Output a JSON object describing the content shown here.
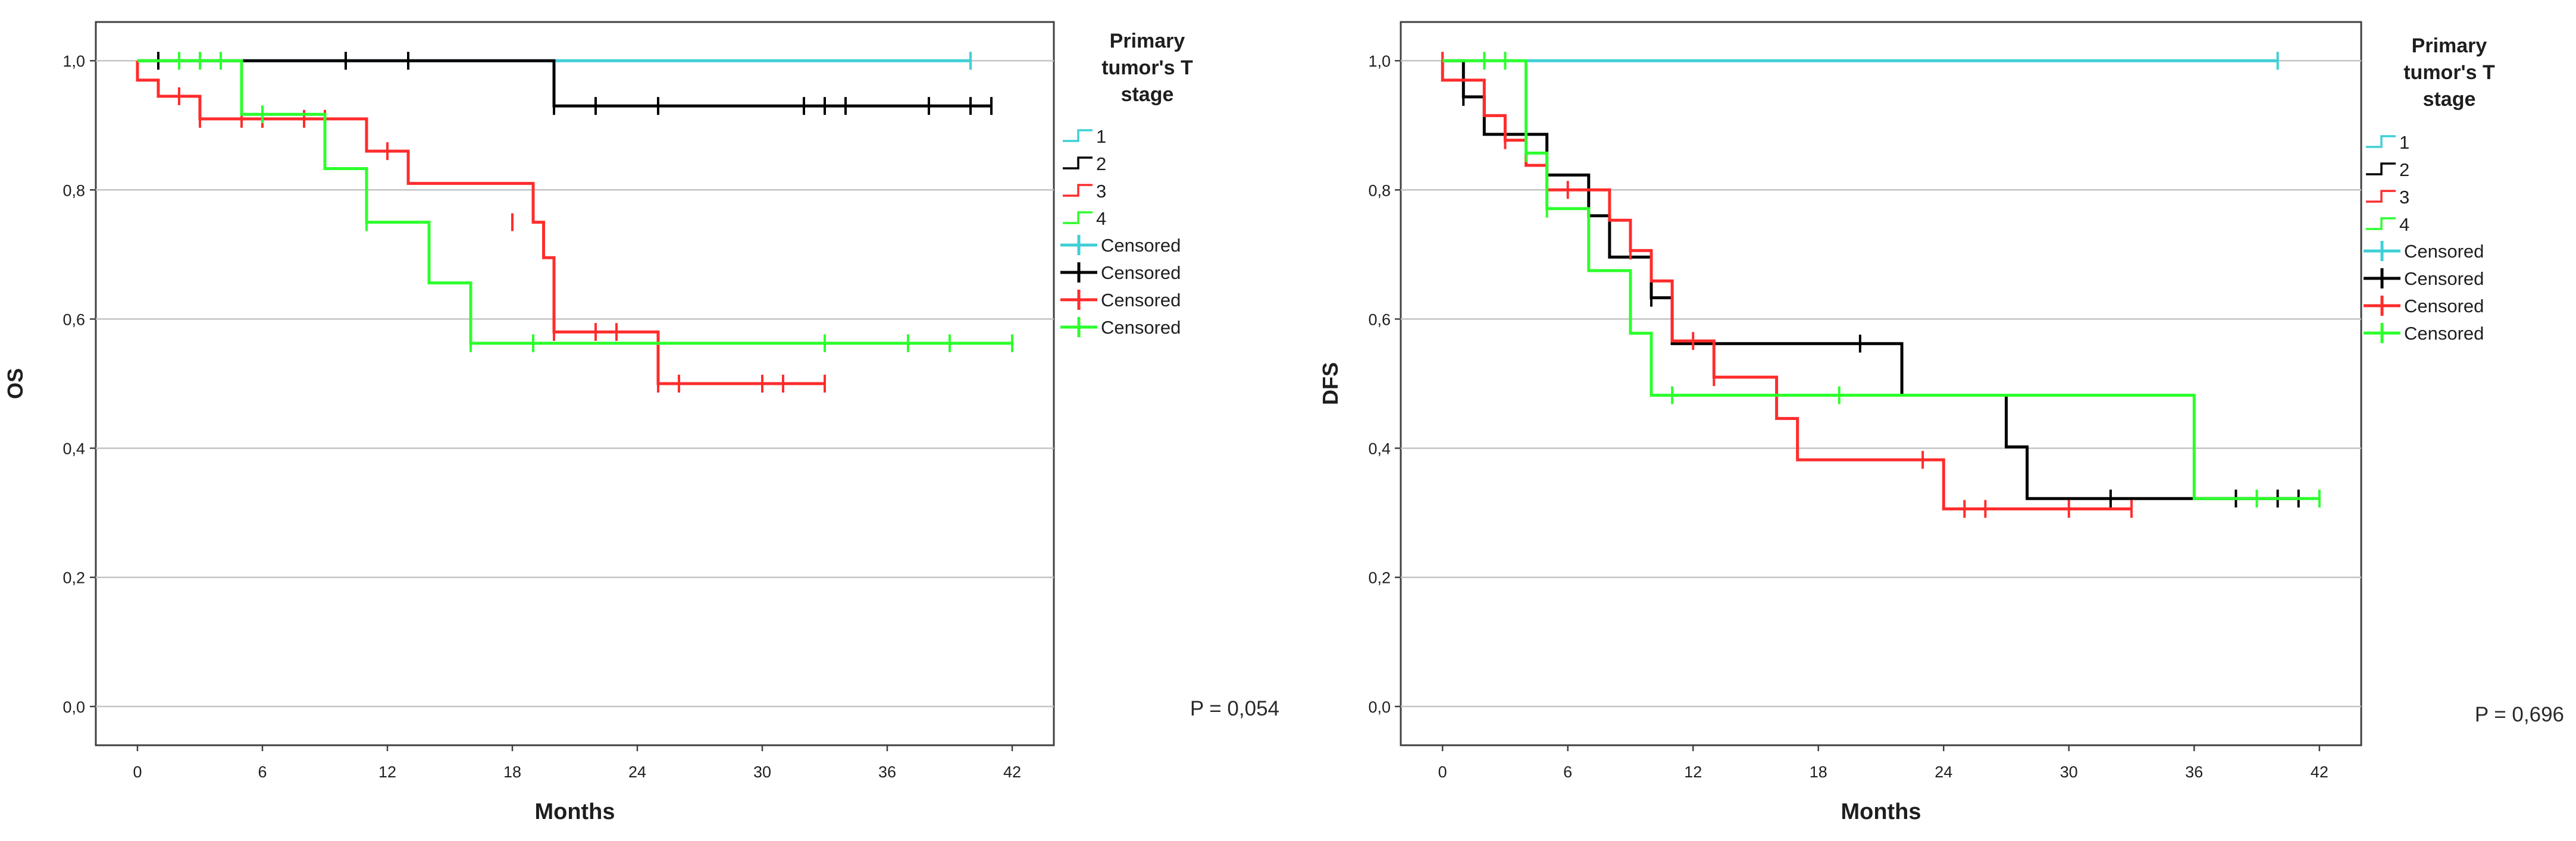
{
  "figure": {
    "legend_title": [
      "Primary",
      "tumor's T",
      "stage"
    ],
    "groups": [
      "1",
      "2",
      "3",
      "4"
    ],
    "censored_label": "Censored",
    "colors": {
      "1": "#3fcfd6",
      "2": "#000000",
      "3": "#ff2c2c",
      "4": "#2cff2c",
      "grid": "#c4c4c4",
      "axis": "#404040",
      "text": "#1e1e1e"
    }
  },
  "chart_data": [
    {
      "type": "line",
      "chart_kind": "kaplan-meier",
      "title": "",
      "xlabel": "Months",
      "ylabel": "OS",
      "xlim": [
        -2,
        44
      ],
      "ylim": [
        -0.06,
        1.06
      ],
      "xticks": [
        0,
        6,
        12,
        18,
        24,
        30,
        36,
        42
      ],
      "yticks": [
        0.0,
        0.2,
        0.4,
        0.6,
        0.8,
        1.0
      ],
      "ytick_labels": [
        "0,0",
        "0,2",
        "0,4",
        "0,6",
        "0,8",
        "1,0"
      ],
      "grid": "horizontal",
      "p_value_label": "P = 0,054",
      "series": [
        {
          "name": "1",
          "color_key": "1",
          "steps": [
            [
              0,
              1.0
            ],
            [
              40,
              1.0
            ]
          ],
          "censored": [
            [
              40,
              1.0
            ]
          ]
        },
        {
          "name": "2",
          "color_key": "2",
          "steps": [
            [
              0,
              1.0
            ],
            [
              20,
              0.93
            ],
            [
              41,
              0.93
            ]
          ],
          "censored": [
            [
              1,
              1.0
            ],
            [
              10,
              1.0
            ],
            [
              13,
              1.0
            ],
            [
              20,
              0.93
            ],
            [
              22,
              0.93
            ],
            [
              25,
              0.93
            ],
            [
              32,
              0.93
            ],
            [
              33,
              0.93
            ],
            [
              34,
              0.93
            ],
            [
              38,
              0.93
            ],
            [
              40,
              0.93
            ],
            [
              41,
              0.93
            ]
          ]
        },
        {
          "name": "3",
          "color_key": "3",
          "steps": [
            [
              0,
              1.0
            ],
            [
              0,
              0.97
            ],
            [
              1,
              0.945
            ],
            [
              3,
              0.91
            ],
            [
              11,
              0.86
            ],
            [
              13,
              0.81
            ],
            [
              19,
              0.75
            ],
            [
              19.5,
              0.695
            ],
            [
              20,
              0.58
            ],
            [
              25,
              0.5
            ],
            [
              33,
              0.5
            ]
          ],
          "censored": [
            [
              2,
              0.945
            ],
            [
              3,
              0.91
            ],
            [
              5,
              0.91
            ],
            [
              6,
              0.91
            ],
            [
              8,
              0.91
            ],
            [
              9,
              0.91
            ],
            [
              12,
              0.86
            ],
            [
              18,
              0.75
            ],
            [
              20,
              0.58
            ],
            [
              22,
              0.58
            ],
            [
              23,
              0.58
            ],
            [
              25,
              0.5
            ],
            [
              26,
              0.5
            ],
            [
              30,
              0.5
            ],
            [
              31,
              0.5
            ],
            [
              33,
              0.5
            ]
          ]
        },
        {
          "name": "4",
          "color_key": "4",
          "steps": [
            [
              0,
              1.0
            ],
            [
              5,
              0.917
            ],
            [
              9,
              0.833
            ],
            [
              11,
              0.75
            ],
            [
              14,
              0.656
            ],
            [
              16,
              0.5625
            ],
            [
              42,
              0.5625
            ]
          ],
          "censored": [
            [
              2,
              1.0
            ],
            [
              3,
              1.0
            ],
            [
              4,
              1.0
            ],
            [
              6,
              0.917
            ],
            [
              11,
              0.75
            ],
            [
              16,
              0.5625
            ],
            [
              19,
              0.5625
            ],
            [
              33,
              0.5625
            ],
            [
              37,
              0.5625
            ],
            [
              39,
              0.5625
            ],
            [
              42,
              0.5625
            ]
          ]
        }
      ]
    },
    {
      "type": "line",
      "chart_kind": "kaplan-meier",
      "title": "",
      "xlabel": "Months",
      "ylabel": "DFS",
      "xlim": [
        -2,
        44
      ],
      "ylim": [
        -0.06,
        1.06
      ],
      "xticks": [
        0,
        6,
        12,
        18,
        24,
        30,
        36,
        42
      ],
      "yticks": [
        0.0,
        0.2,
        0.4,
        0.6,
        0.8,
        1.0
      ],
      "ytick_labels": [
        "0,0",
        "0,2",
        "0,4",
        "0,6",
        "0,8",
        "1,0"
      ],
      "grid": "horizontal",
      "p_value_label": "P = 0,696",
      "series": [
        {
          "name": "1",
          "color_key": "1",
          "steps": [
            [
              0,
              1.0
            ],
            [
              40,
              1.0
            ]
          ],
          "censored": [
            [
              40,
              1.0
            ]
          ]
        },
        {
          "name": "2",
          "color_key": "2",
          "steps": [
            [
              0,
              1.0
            ],
            [
              1,
              0.944
            ],
            [
              2,
              0.886
            ],
            [
              5,
              0.823
            ],
            [
              7,
              0.76
            ],
            [
              8,
              0.696
            ],
            [
              10,
              0.633
            ],
            [
              11,
              0.562
            ],
            [
              22,
              0.482
            ],
            [
              27,
              0.402
            ],
            [
              28,
              0.322
            ],
            [
              41,
              0.322
            ]
          ],
          "censored": [
            [
              1,
              0.944
            ],
            [
              3,
              0.886
            ],
            [
              10,
              0.633
            ],
            [
              20,
              0.562
            ],
            [
              32,
              0.322
            ],
            [
              38,
              0.322
            ],
            [
              40,
              0.322
            ],
            [
              41,
              0.322
            ]
          ]
        },
        {
          "name": "3",
          "color_key": "3",
          "steps": [
            [
              0,
              1.0
            ],
            [
              0,
              0.97
            ],
            [
              2,
              0.915
            ],
            [
              3,
              0.877
            ],
            [
              4,
              0.838
            ],
            [
              5,
              0.8
            ],
            [
              8,
              0.753
            ],
            [
              9,
              0.706
            ],
            [
              10,
              0.659
            ],
            [
              11,
              0.566
            ],
            [
              13,
              0.51
            ],
            [
              16,
              0.446
            ],
            [
              17,
              0.382
            ],
            [
              23,
              0.382
            ],
            [
              24,
              0.306
            ],
            [
              33,
              0.306
            ]
          ],
          "censored": [
            [
              0,
              1.0
            ],
            [
              3,
              0.877
            ],
            [
              6,
              0.8
            ],
            [
              9,
              0.706
            ],
            [
              12,
              0.566
            ],
            [
              13,
              0.51
            ],
            [
              23,
              0.382
            ],
            [
              25,
              0.306
            ],
            [
              26,
              0.306
            ],
            [
              30,
              0.306
            ],
            [
              33,
              0.306
            ]
          ]
        },
        {
          "name": "4",
          "color_key": "4",
          "steps": [
            [
              0,
              1.0
            ],
            [
              4,
              0.857
            ],
            [
              5,
              0.771
            ],
            [
              7,
              0.675
            ],
            [
              9,
              0.578
            ],
            [
              10,
              0.482
            ],
            [
              36,
              0.482
            ],
            [
              36,
              0.322
            ],
            [
              42,
              0.322
            ]
          ],
          "censored": [
            [
              2,
              1.0
            ],
            [
              3,
              1.0
            ],
            [
              4,
              0.857
            ],
            [
              5,
              0.771
            ],
            [
              11,
              0.482
            ],
            [
              19,
              0.482
            ],
            [
              39,
              0.322
            ],
            [
              42,
              0.322
            ]
          ]
        }
      ]
    }
  ]
}
